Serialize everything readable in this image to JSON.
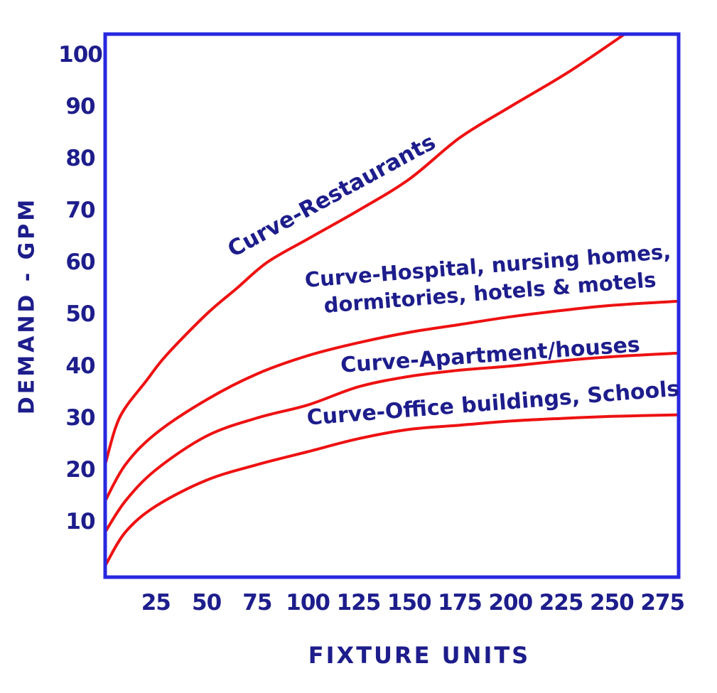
{
  "chart_data": {
    "type": "line",
    "title": "",
    "xlabel": "FIXTURE UNITS",
    "ylabel": "DEMAND - GPM",
    "xlim": [
      0,
      283
    ],
    "ylim": [
      0,
      104
    ],
    "x_ticks": [
      25,
      50,
      75,
      100,
      125,
      150,
      175,
      200,
      225,
      250,
      275
    ],
    "y_ticks": [
      10,
      20,
      30,
      40,
      50,
      60,
      70,
      80,
      90,
      100
    ],
    "grid": false,
    "legend_position": "inline-labels-on-curves",
    "colors": {
      "axis": "#2828e0",
      "curve": "#ee1111",
      "text": "#1d1d8c",
      "background": "#ffffff"
    },
    "series": [
      {
        "id": "restaurants",
        "name": "Curve-Restaurants",
        "label_lines": [
          "Curve-Restaurants"
        ],
        "points": [
          [
            0,
            21
          ],
          [
            5,
            28
          ],
          [
            10,
            32
          ],
          [
            20,
            37
          ],
          [
            30,
            42
          ],
          [
            50,
            50
          ],
          [
            65,
            55
          ],
          [
            80,
            60
          ],
          [
            100,
            64.5
          ],
          [
            125,
            70
          ],
          [
            150,
            76
          ],
          [
            175,
            84
          ],
          [
            200,
            90
          ],
          [
            230,
            97
          ],
          [
            262,
            105.5
          ]
        ]
      },
      {
        "id": "hospital",
        "name": "Curve-Hospital, nursing homes, dormitories, hotels & motels",
        "label_lines": [
          "Curve-Hospital, nursing homes,",
          "dormitories, hotels & motels"
        ],
        "points": [
          [
            0,
            14
          ],
          [
            10,
            21
          ],
          [
            25,
            27
          ],
          [
            50,
            33.5
          ],
          [
            75,
            38.5
          ],
          [
            100,
            42
          ],
          [
            125,
            44.5
          ],
          [
            150,
            46.5
          ],
          [
            175,
            48
          ],
          [
            200,
            49.5
          ],
          [
            225,
            50.7
          ],
          [
            250,
            51.7
          ],
          [
            283,
            52.5
          ]
        ]
      },
      {
        "id": "apartment",
        "name": "Curve-Apartment/houses",
        "label_lines": [
          "Curve-Apartment/houses"
        ],
        "points": [
          [
            0,
            8
          ],
          [
            10,
            14
          ],
          [
            25,
            20
          ],
          [
            50,
            26.5
          ],
          [
            75,
            30
          ],
          [
            100,
            32.5
          ],
          [
            125,
            36
          ],
          [
            150,
            38
          ],
          [
            175,
            39.2
          ],
          [
            200,
            40
          ],
          [
            225,
            41
          ],
          [
            250,
            41.8
          ],
          [
            283,
            42.5
          ]
        ]
      },
      {
        "id": "office",
        "name": "Curve-Office buildings, Schools",
        "label_lines": [
          "Curve-Office buildings, Schools"
        ],
        "points": [
          [
            0,
            1.5
          ],
          [
            10,
            8
          ],
          [
            25,
            13
          ],
          [
            50,
            18
          ],
          [
            75,
            21
          ],
          [
            100,
            23.5
          ],
          [
            125,
            26
          ],
          [
            150,
            27.8
          ],
          [
            175,
            28.6
          ],
          [
            200,
            29.4
          ],
          [
            225,
            29.9
          ],
          [
            250,
            30.3
          ],
          [
            283,
            30.6
          ]
        ]
      }
    ]
  }
}
